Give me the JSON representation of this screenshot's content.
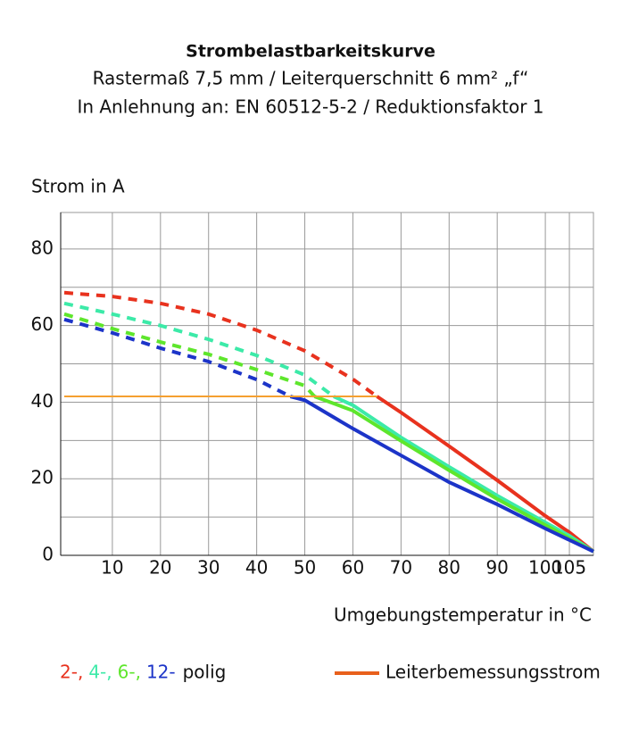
{
  "chart_data": {
    "type": "line",
    "title": "Strombelastbarkeitskurve",
    "subtitle": [
      "Rastermaß 7,5 mm / Leiterquerschnitt 6 mm² „f“",
      "In Anlehnung an: EN 60512-5-2 / Reduktionsfaktor 1"
    ],
    "y_label": "Strom in A",
    "x_label": "Umgebungstemperatur in °C",
    "xlim": [
      0,
      110
    ],
    "xticks": [
      10,
      20,
      30,
      40,
      50,
      60,
      70,
      80,
      90,
      100,
      105
    ],
    "ylim": [
      0,
      90
    ],
    "yticks": [
      0,
      20,
      40,
      60,
      80
    ],
    "ygrid_minor": [
      10,
      30,
      50,
      70
    ],
    "grid": true,
    "legend_suffix": "polig",
    "series": [
      {
        "name": "2-,",
        "color": "#e8321e",
        "x": [
          0,
          10,
          20,
          30,
          40,
          50,
          60,
          65,
          70,
          80,
          90,
          100,
          105,
          110
        ],
        "values": [
          68.6,
          67.6,
          65.8,
          63,
          58.8,
          53.4,
          46,
          41.5,
          37.3,
          28.5,
          19.6,
          10.3,
          6,
          1
        ]
      },
      {
        "name": "4-,",
        "color": "#3ceaa8",
        "x": [
          0,
          10,
          20,
          30,
          40,
          50,
          56,
          60,
          70,
          80,
          90,
          100,
          105,
          110
        ],
        "values": [
          65.8,
          63,
          60,
          56.4,
          52.2,
          47.1,
          41.5,
          39.2,
          30.8,
          23.1,
          15.6,
          8.6,
          5.1,
          1
        ]
      },
      {
        "name": "6-,",
        "color": "#5ee62c",
        "x": [
          0,
          10,
          20,
          30,
          40,
          50,
          52,
          60,
          70,
          80,
          90,
          100,
          110
        ],
        "values": [
          63,
          59.2,
          55.7,
          52.5,
          48.5,
          44.3,
          41.5,
          37.8,
          29.9,
          22.2,
          14.7,
          7.9,
          1
        ]
      },
      {
        "name": "12-",
        "color": "#1c34c8",
        "x": [
          0,
          10,
          20,
          30,
          40,
          47,
          50,
          60,
          70,
          80,
          90,
          100,
          105,
          110
        ],
        "values": [
          61.6,
          58.1,
          54.1,
          50.6,
          45.9,
          41.5,
          40.5,
          33.1,
          26.1,
          19.1,
          13.3,
          7,
          4,
          1
        ]
      },
      {
        "name": "Leiterbemessungsstrom",
        "color": "#f5a030",
        "legend_color": "#e8601c",
        "x": [
          0,
          65
        ],
        "values": [
          41.5,
          41.5
        ]
      }
    ]
  }
}
